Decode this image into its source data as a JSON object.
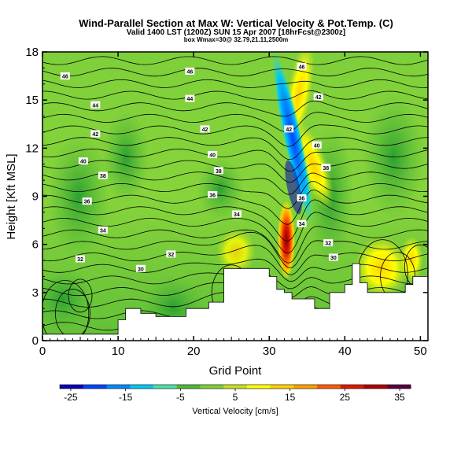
{
  "header": {
    "title": "Wind-Parallel Section at Max W: Vertical Velocity & Pot.Temp. (C)",
    "subtitle": "Valid 1400 LST (1200Z) SUN 15 Apr 2007 [18hrFcst@2300z]",
    "subtitle2": "box Wmax=30@ 32.79,21.11,2500m"
  },
  "chart_data": {
    "type": "heatmap",
    "xlabel": "Grid Point",
    "ylabel": "Height [Kft MSL]",
    "xlim": [
      0,
      51
    ],
    "ylim": [
      0,
      18
    ],
    "x_ticks": [
      "0",
      "10",
      "20",
      "30",
      "40",
      "50"
    ],
    "y_ticks": [
      "0",
      "3",
      "6",
      "9",
      "12",
      "15",
      "18"
    ],
    "colorbar": {
      "label": "Vertical Velocity [cm/s]",
      "tick_labels": [
        "-25",
        "-15",
        "-5",
        "5",
        "15",
        "25",
        "35"
      ],
      "ticks": [
        -25,
        -15,
        -5,
        5,
        15,
        25,
        35
      ],
      "range": [
        -27,
        37
      ],
      "colors": [
        "#0b00b8",
        "#0044ff",
        "#0088ff",
        "#00c8f0",
        "#4ee0a8",
        "#52b838",
        "#7ed03a",
        "#c8e024",
        "#ffff00",
        "#ffd000",
        "#ff9e00",
        "#ff5a00",
        "#e01800",
        "#b00000",
        "#5a0040"
      ]
    },
    "terrain": [
      [
        0,
        0.4
      ],
      [
        10,
        0.4
      ],
      [
        10,
        1.3
      ],
      [
        11,
        1.3
      ],
      [
        11,
        2
      ],
      [
        13,
        2
      ],
      [
        13,
        1.7
      ],
      [
        15,
        1.7
      ],
      [
        15,
        1.5
      ],
      [
        19,
        1.5
      ],
      [
        19,
        2
      ],
      [
        22,
        2
      ],
      [
        22,
        2.4
      ],
      [
        24,
        2.4
      ],
      [
        24,
        4.5
      ],
      [
        30,
        4.5
      ],
      [
        30,
        4
      ],
      [
        31,
        4
      ],
      [
        31,
        3.2
      ],
      [
        32,
        3.2
      ],
      [
        32,
        3
      ],
      [
        33,
        3
      ],
      [
        33,
        2.6
      ],
      [
        36,
        2.6
      ],
      [
        36,
        2
      ],
      [
        38,
        2
      ],
      [
        38,
        3
      ],
      [
        40,
        3
      ],
      [
        40,
        3.5
      ],
      [
        41,
        3.5
      ],
      [
        41,
        4.8
      ],
      [
        42,
        4.8
      ],
      [
        42,
        3.6
      ],
      [
        43,
        3.6
      ],
      [
        43,
        3
      ],
      [
        48,
        3
      ],
      [
        48,
        3.5
      ],
      [
        49,
        3.5
      ],
      [
        49,
        4
      ],
      [
        51,
        4
      ]
    ],
    "isentrope_labels": [
      {
        "x": 3,
        "y": 16.5,
        "text": "46"
      },
      {
        "x": 19.5,
        "y": 16.8,
        "text": "46"
      },
      {
        "x": 34.3,
        "y": 17.1,
        "text": "46"
      },
      {
        "x": 7,
        "y": 14.7,
        "text": "44"
      },
      {
        "x": 19.5,
        "y": 15.1,
        "text": "44"
      },
      {
        "x": 36.5,
        "y": 15.2,
        "text": "42"
      },
      {
        "x": 7,
        "y": 12.9,
        "text": "42"
      },
      {
        "x": 21.5,
        "y": 13.2,
        "text": "42"
      },
      {
        "x": 32.6,
        "y": 13.2,
        "text": "42"
      },
      {
        "x": 5.4,
        "y": 11.2,
        "text": "40"
      },
      {
        "x": 22.5,
        "y": 11.6,
        "text": "40"
      },
      {
        "x": 36.3,
        "y": 12.2,
        "text": "40"
      },
      {
        "x": 8,
        "y": 10.3,
        "text": "38"
      },
      {
        "x": 23.3,
        "y": 10.6,
        "text": "38"
      },
      {
        "x": 37.5,
        "y": 10.8,
        "text": "38"
      },
      {
        "x": 5.9,
        "y": 8.7,
        "text": "36"
      },
      {
        "x": 22.5,
        "y": 9.1,
        "text": "36"
      },
      {
        "x": 34.3,
        "y": 8.9,
        "text": "36"
      },
      {
        "x": 8,
        "y": 6.9,
        "text": "34"
      },
      {
        "x": 25.7,
        "y": 7.9,
        "text": "34"
      },
      {
        "x": 34.3,
        "y": 7.3,
        "text": "34"
      },
      {
        "x": 5,
        "y": 5.1,
        "text": "32"
      },
      {
        "x": 17,
        "y": 5.4,
        "text": "32"
      },
      {
        "x": 37.8,
        "y": 6.1,
        "text": "32"
      },
      {
        "x": 13,
        "y": 4.5,
        "text": "30"
      },
      {
        "x": 38.5,
        "y": 5.2,
        "text": "30"
      }
    ]
  }
}
